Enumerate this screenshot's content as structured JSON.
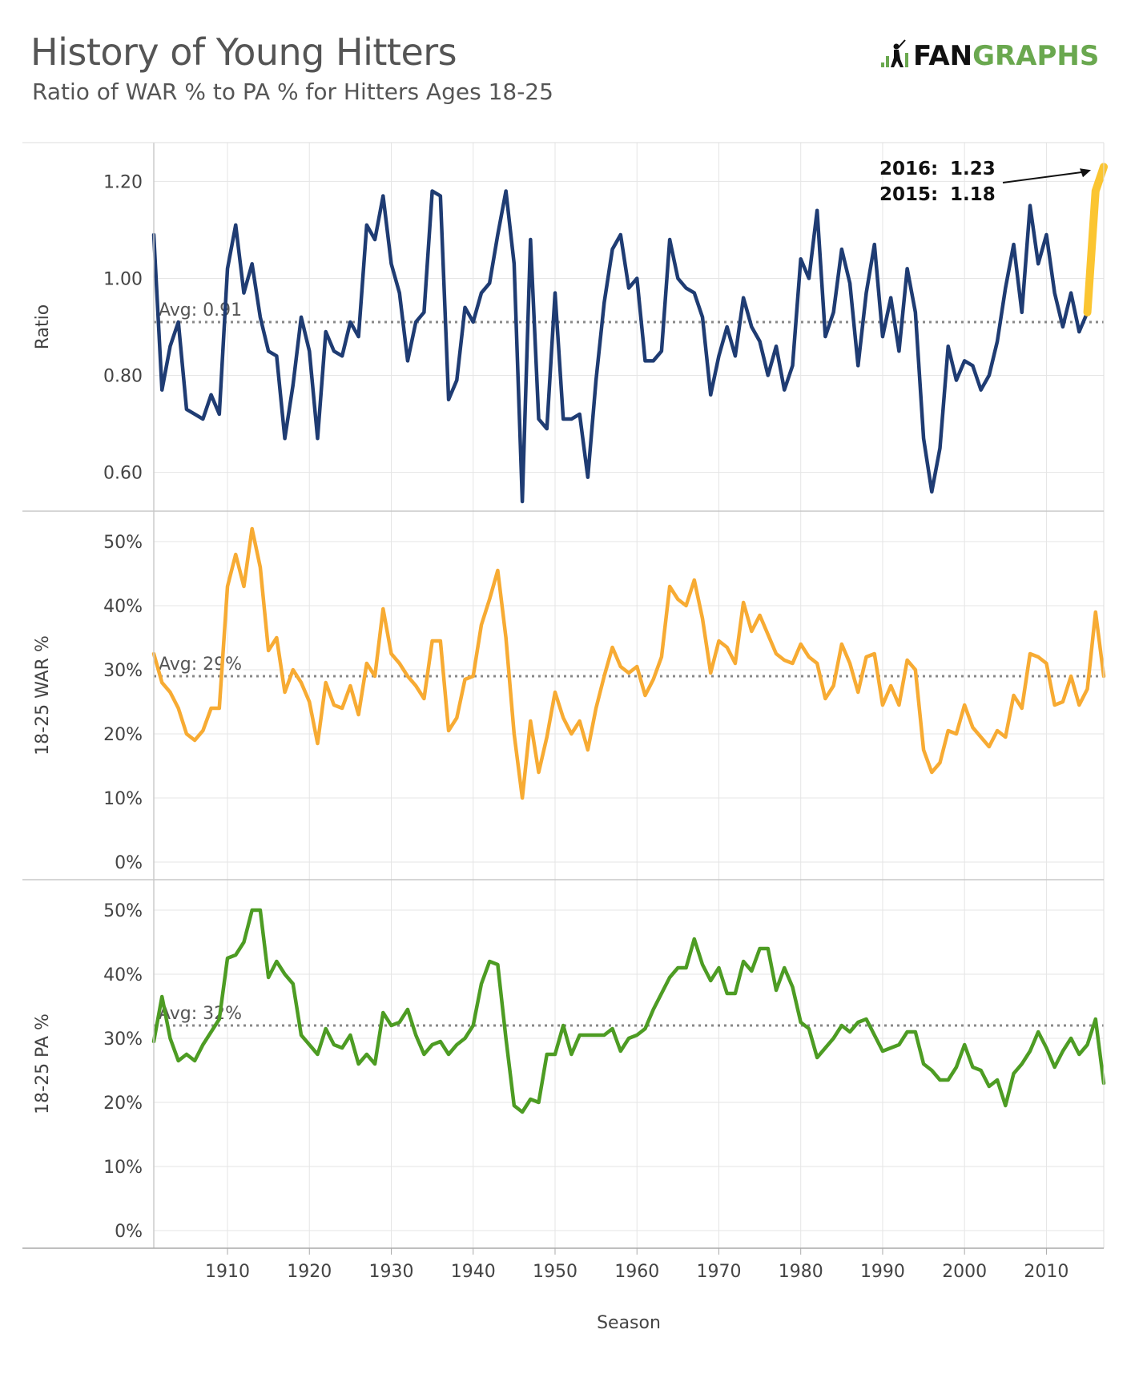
{
  "header": {
    "title": "History of Young Hitters",
    "subtitle": "Ratio of WAR % to PA % for Hitters Ages 18-25",
    "logo_prefix": "FAN",
    "logo_suffix": "GRAPHS"
  },
  "colors": {
    "ratio": "#1f3c73",
    "war": "#f7ab33",
    "pa": "#4d9c23",
    "highlight": "#fbc531",
    "grid": "#e5e5e5",
    "avg": "#888888"
  },
  "chart_data": [
    {
      "type": "line",
      "id": "ratio",
      "ylabel": "Ratio",
      "xlabel": "Season",
      "ylim": [
        0.53,
        1.27
      ],
      "yticks": [
        0.6,
        0.8,
        1.0,
        1.2
      ],
      "ytick_labels": [
        "0.60",
        "0.80",
        "1.00",
        "1.20"
      ],
      "avg": 0.91,
      "avg_label": "Avg: 0.91",
      "x_start": 1901,
      "values": [
        1.09,
        0.77,
        0.86,
        0.91,
        0.73,
        0.72,
        0.71,
        0.76,
        0.72,
        1.02,
        1.11,
        0.97,
        1.03,
        0.92,
        0.85,
        0.84,
        0.67,
        0.78,
        0.92,
        0.85,
        0.67,
        0.89,
        0.85,
        0.84,
        0.91,
        0.88,
        1.11,
        1.08,
        1.17,
        1.03,
        0.97,
        0.83,
        0.91,
        0.93,
        1.18,
        1.17,
        0.75,
        0.79,
        0.94,
        0.91,
        0.97,
        0.99,
        1.09,
        1.18,
        1.03,
        0.54,
        1.08,
        0.71,
        0.69,
        0.97,
        0.71,
        0.71,
        0.72,
        0.59,
        0.79,
        0.95,
        1.06,
        1.09,
        0.98,
        1.0,
        0.83,
        0.83,
        0.85,
        1.08,
        1.0,
        0.98,
        0.97,
        0.92,
        0.76,
        0.84,
        0.9,
        0.84,
        0.96,
        0.9,
        0.87,
        0.8,
        0.86,
        0.77,
        0.82,
        1.04,
        1.0,
        1.14,
        0.88,
        0.93,
        1.06,
        0.99,
        0.82,
        0.97,
        1.07,
        0.88,
        0.96,
        0.85,
        1.02,
        0.93,
        0.67,
        0.56,
        0.65,
        0.86,
        0.79,
        0.83,
        0.82,
        0.77,
        0.8,
        0.87,
        0.98,
        1.07,
        0.93,
        1.15,
        1.03,
        1.09,
        0.97,
        0.9,
        0.97,
        0.89,
        0.93,
        1.18,
        1.23
      ],
      "highlight_from": 2015,
      "annotations": [
        {
          "label": "2016:",
          "value": "1.23"
        },
        {
          "label": "2015:",
          "value": "1.18"
        }
      ]
    },
    {
      "type": "line",
      "id": "war",
      "ylabel": "18-25 WAR %",
      "ylim": [
        -2,
        54
      ],
      "yticks": [
        0,
        10,
        20,
        30,
        40,
        50
      ],
      "ytick_labels": [
        "0%",
        "10%",
        "20%",
        "30%",
        "40%",
        "50%"
      ],
      "avg": 29,
      "avg_label": "Avg: 29%",
      "x_start": 1901,
      "values": [
        32.5,
        28,
        26.5,
        24,
        20,
        19,
        20.5,
        24,
        24,
        43,
        48,
        43,
        52,
        46,
        33,
        35,
        26.5,
        30,
        28,
        25,
        18.5,
        28,
        24.5,
        24,
        27.5,
        23,
        31,
        29,
        39.5,
        32.5,
        31,
        29,
        27.5,
        25.5,
        34.5,
        34.5,
        20.5,
        22.5,
        28.5,
        29,
        37,
        41,
        45.5,
        35,
        20,
        10,
        22,
        14,
        19.5,
        26.5,
        22.5,
        20,
        22,
        17.5,
        24,
        29,
        33.5,
        30.5,
        29.5,
        30.5,
        26,
        28.5,
        32,
        43,
        41,
        40,
        44,
        38,
        29.5,
        34.5,
        33.5,
        31,
        40.5,
        36,
        38.5,
        35.5,
        32.5,
        31.5,
        31,
        34,
        32,
        31,
        25.5,
        27.5,
        34,
        31,
        26.5,
        32,
        32.5,
        24.5,
        27.5,
        24.5,
        31.5,
        30,
        17.5,
        14,
        15.5,
        20.5,
        20,
        24.5,
        21,
        19.5,
        18,
        20.5,
        19.5,
        26,
        24,
        32.5,
        32,
        31,
        24.5,
        25,
        29,
        24.5,
        27,
        39,
        29
      ]
    },
    {
      "type": "line",
      "id": "pa",
      "ylabel": "18-25 PA %",
      "ylim": [
        -2,
        54
      ],
      "yticks": [
        0,
        10,
        20,
        30,
        40,
        50
      ],
      "ytick_labels": [
        "0%",
        "10%",
        "20%",
        "30%",
        "40%",
        "50%"
      ],
      "avg": 32,
      "avg_label": "Avg: 32%",
      "x_start": 1901,
      "values": [
        29.5,
        36.5,
        30,
        26.5,
        27.5,
        26.5,
        29,
        31,
        33,
        42.5,
        43,
        45,
        50,
        50,
        39.5,
        42,
        40,
        38.5,
        30.5,
        29,
        27.5,
        31.5,
        29,
        28.5,
        30.5,
        26,
        27.5,
        26,
        34,
        32,
        32.5,
        34.5,
        30.5,
        27.5,
        29,
        29.5,
        27.5,
        29,
        30,
        32,
        38.5,
        42,
        41.5,
        30,
        19.5,
        18.5,
        20.5,
        20,
        27.5,
        27.5,
        32,
        27.5,
        30.5,
        30.5,
        30.5,
        30.5,
        31.5,
        28,
        30,
        30.5,
        31.5,
        34.5,
        37,
        39.5,
        41,
        41,
        45.5,
        41.5,
        39,
        41,
        37,
        37,
        42,
        40.5,
        44,
        44,
        37.5,
        41,
        38,
        32.5,
        31.5,
        27,
        28.5,
        30,
        32,
        31,
        32.5,
        33,
        30.5,
        28,
        28.5,
        29,
        31,
        31,
        26,
        25,
        23.5,
        23.5,
        25.5,
        29,
        25.5,
        25,
        22.5,
        23.5,
        19.5,
        24.5,
        26,
        28,
        31,
        28.5,
        25.5,
        28,
        30,
        27.5,
        29,
        33,
        23
      ]
    }
  ],
  "x_axis": {
    "label": "Season",
    "ticks": [
      1910,
      1920,
      1930,
      1940,
      1950,
      1960,
      1970,
      1980,
      1990,
      2000,
      2010
    ],
    "tick_labels": [
      "1910",
      "1920",
      "1930",
      "1940",
      "1950",
      "1960",
      "1970",
      "1980",
      "1990",
      "2000",
      "2010"
    ],
    "range": [
      1901,
      2017
    ]
  }
}
